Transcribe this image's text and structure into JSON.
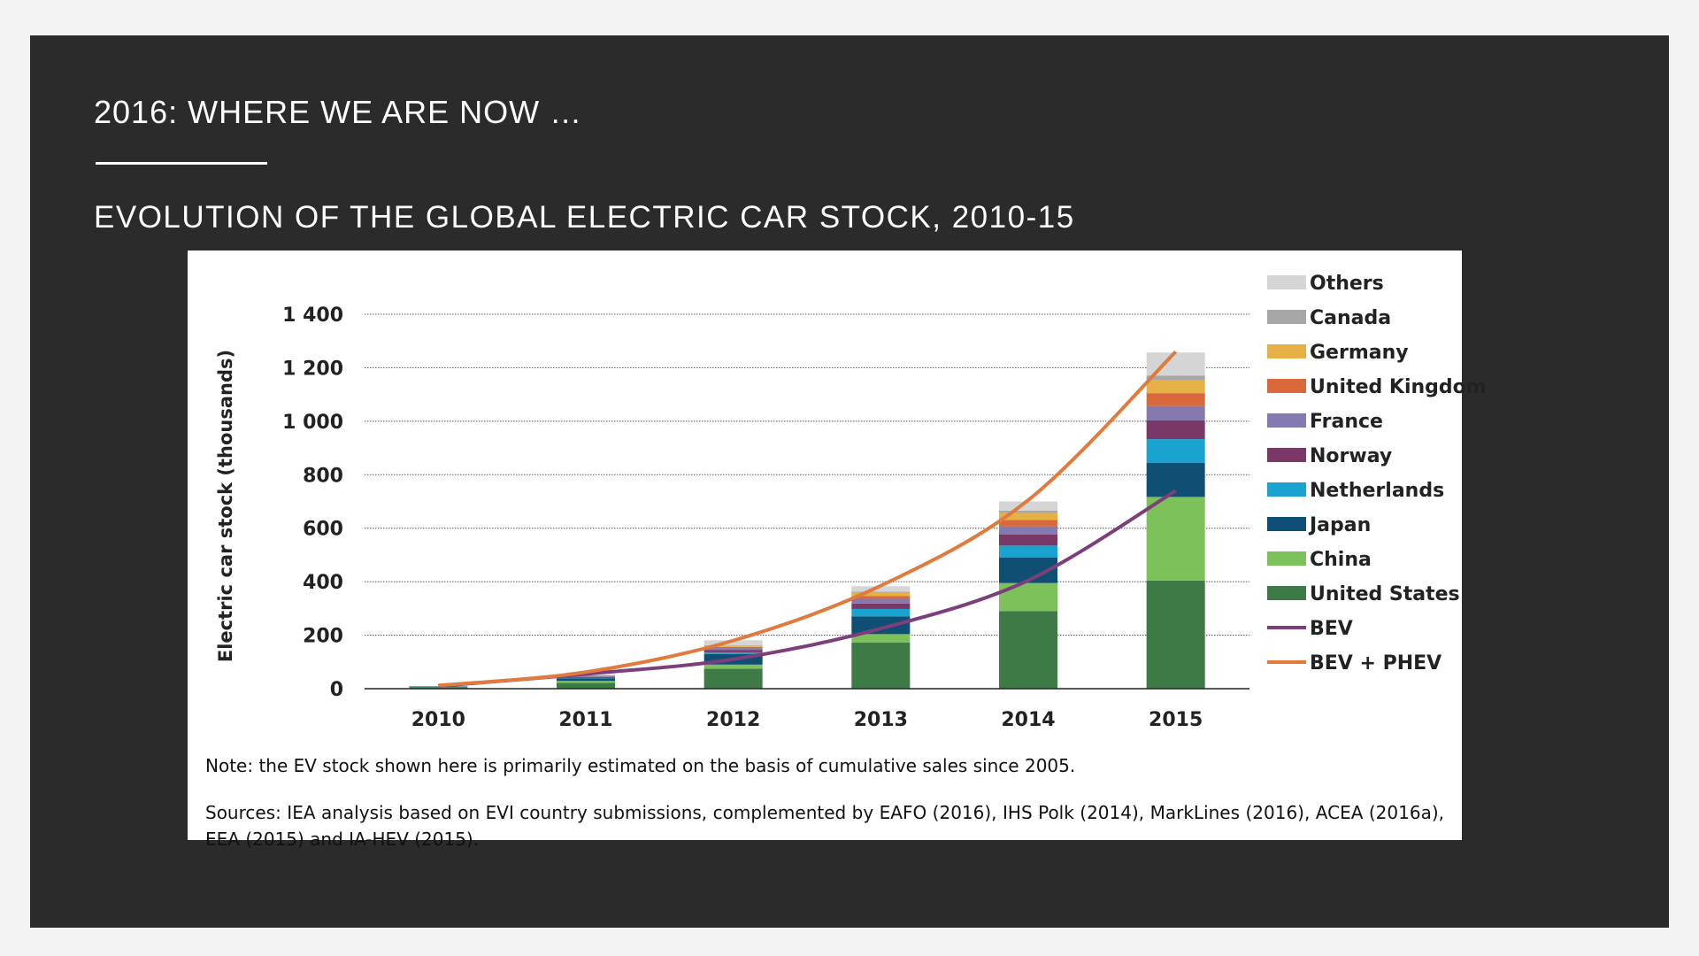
{
  "slide": {
    "title": "2016: WHERE WE ARE NOW …",
    "subtitle": "EVOLUTION OF THE GLOBAL ELECTRIC CAR STOCK, 2010-15"
  },
  "chart_data": {
    "type": "bar",
    "stacked": true,
    "ylabel": "Electric car stock (thousands)",
    "ylim": [
      0,
      1400
    ],
    "yticks": [
      0,
      200,
      400,
      600,
      800,
      1000,
      1200,
      1400
    ],
    "ytick_labels": [
      "0",
      "200",
      "400",
      "600",
      "800",
      "1 000",
      "1 200",
      "1 400"
    ],
    "grid": "dotted-horizontal",
    "legend_position": "right",
    "categories": [
      "2010",
      "2011",
      "2012",
      "2013",
      "2014",
      "2015"
    ],
    "series": [
      {
        "name": "United States",
        "color": "#3d7a45",
        "values": [
          4,
          22,
          75,
          172,
          290,
          404
        ]
      },
      {
        "name": "China",
        "color": "#7cc15a",
        "values": [
          1,
          7,
          15,
          32,
          105,
          313
        ]
      },
      {
        "name": "Japan",
        "color": "#0f4f74",
        "values": [
          3,
          10,
          40,
          66,
          96,
          128
        ]
      },
      {
        "name": "Netherlands",
        "color": "#1ba3cf",
        "values": [
          0,
          1,
          6,
          28,
          44,
          88
        ]
      },
      {
        "name": "Norway",
        "color": "#7a3866",
        "values": [
          0,
          3,
          8,
          20,
          42,
          70
        ]
      },
      {
        "name": "France",
        "color": "#8579b0",
        "values": [
          0,
          3,
          8,
          18,
          30,
          54
        ]
      },
      {
        "name": "United Kingdom",
        "color": "#d9683a",
        "values": [
          1,
          2,
          4,
          10,
          24,
          48
        ]
      },
      {
        "name": "Germany",
        "color": "#e5b046",
        "values": [
          0,
          2,
          6,
          12,
          25,
          48
        ]
      },
      {
        "name": "Canada",
        "color": "#a7a7a7",
        "values": [
          0,
          0,
          1,
          5,
          10,
          18
        ]
      },
      {
        "name": "Others",
        "color": "#d5d5d5",
        "values": [
          1,
          3,
          18,
          20,
          34,
          86
        ]
      }
    ],
    "lines": [
      {
        "name": "BEV",
        "color": "#7d3f7c",
        "values": [
          10,
          55,
          110,
          225,
          405,
          740
        ]
      },
      {
        "name": "BEV + PHEV",
        "color": "#e07a3d",
        "values": [
          12,
          62,
          180,
          385,
          705,
          1260
        ]
      }
    ],
    "legend_order": [
      "Others",
      "Canada",
      "Germany",
      "United Kingdom",
      "France",
      "Norway",
      "Netherlands",
      "Japan",
      "China",
      "United States",
      "BEV",
      "BEV + PHEV"
    ],
    "note": "Note: the EV stock shown here is primarily estimated on the basis of cumulative sales since 2005.",
    "sources": "Sources: IEA analysis based on EVI country submissions, complemented by EAFO (2016), IHS Polk (2014), MarkLines (2016), ACEA (2016a), EEA (2015) and IA-HEV (2015)."
  }
}
